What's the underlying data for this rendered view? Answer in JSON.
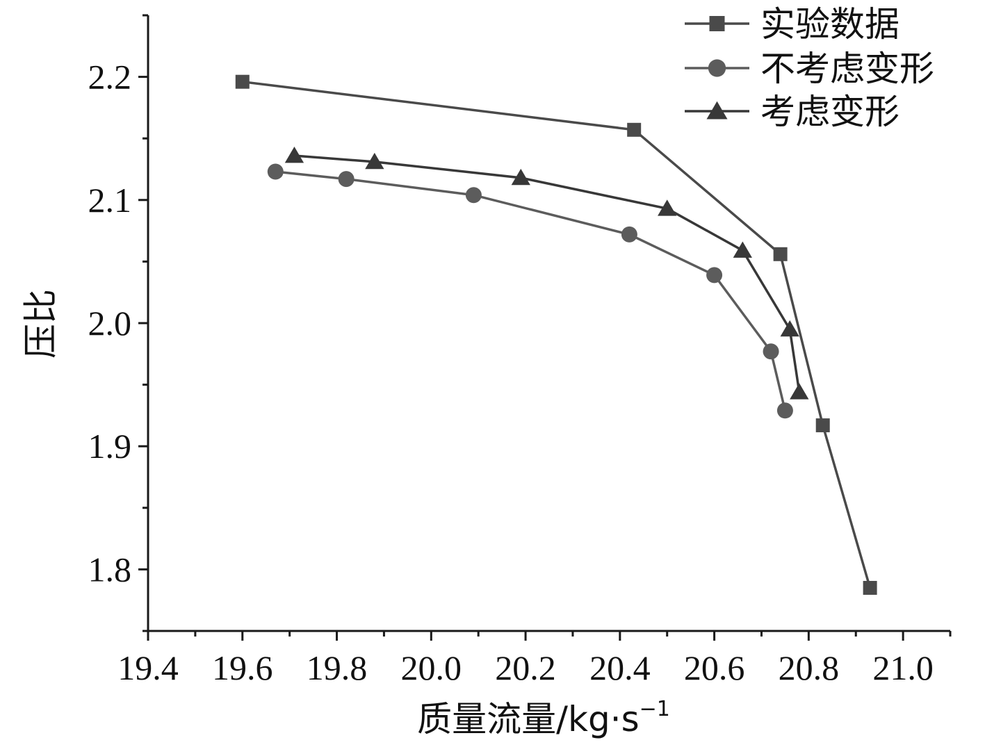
{
  "chart_data": {
    "type": "line",
    "title": "",
    "xlabel": "质量流量/kg·s",
    "xlabel_sup": "−1",
    "ylabel": "压比",
    "xlim": [
      19.4,
      21.1
    ],
    "ylim": [
      1.75,
      2.25
    ],
    "xticks": [
      "19.4",
      "19.6",
      "19.8",
      "20.0",
      "20.2",
      "20.4",
      "20.6",
      "20.8",
      "21.0"
    ],
    "yticks": [
      "1.8",
      "1.9",
      "2.0",
      "2.1",
      "2.2"
    ],
    "legend_position": "top-right",
    "series": [
      {
        "name": "实验数据",
        "marker": "square",
        "color": "#4a4a4a",
        "x": [
          19.6,
          20.43,
          20.74,
          20.83,
          20.93
        ],
        "y": [
          2.196,
          2.157,
          2.056,
          1.917,
          1.785
        ]
      },
      {
        "name": "不考虑变形",
        "marker": "circle",
        "color": "#5c5c5c",
        "x": [
          19.67,
          19.82,
          20.09,
          20.42,
          20.6,
          20.72,
          20.75
        ],
        "y": [
          2.123,
          2.117,
          2.104,
          2.072,
          2.039,
          1.977,
          1.929
        ]
      },
      {
        "name": "考虑变形",
        "marker": "triangle",
        "color": "#383838",
        "x": [
          19.71,
          19.88,
          20.19,
          20.5,
          20.66,
          20.76,
          20.78
        ],
        "y": [
          2.136,
          2.131,
          2.118,
          2.093,
          2.059,
          1.995,
          1.944
        ]
      }
    ]
  }
}
